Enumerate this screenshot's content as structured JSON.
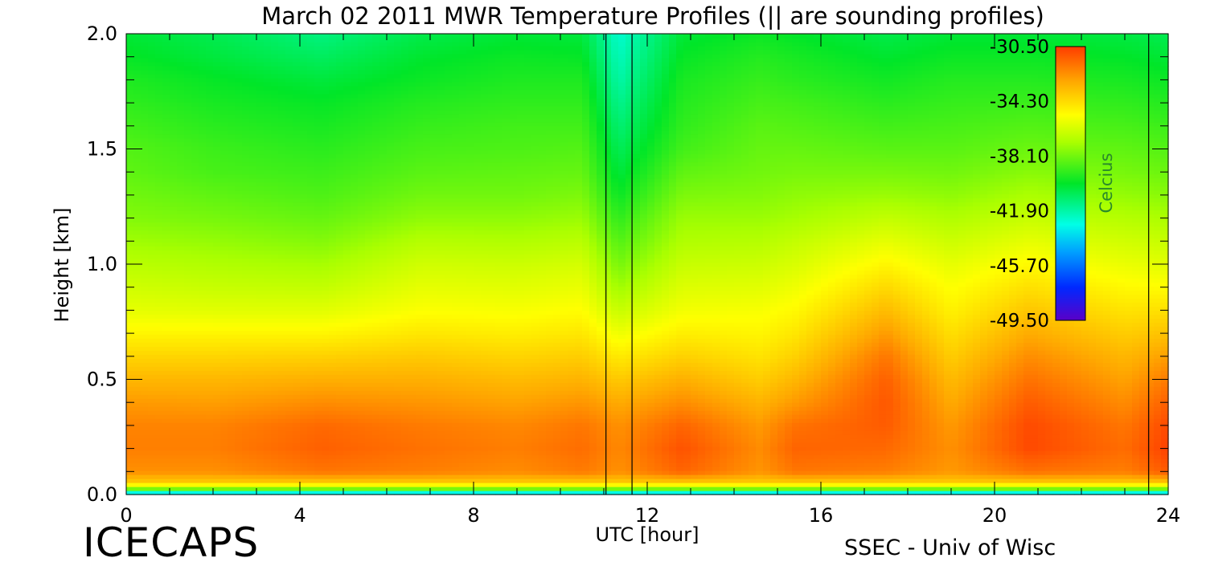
{
  "chart_data": {
    "type": "heatmap",
    "title": "March 02 2011 MWR Temperature Profiles (|| are sounding profiles)",
    "xlabel": "UTC [hour]",
    "ylabel": "Height [km]",
    "xlim": [
      0,
      24
    ],
    "ylim": [
      0,
      2.0
    ],
    "x_ticks": [
      "0",
      "4",
      "8",
      "12",
      "16",
      "20",
      "24"
    ],
    "y_ticks": [
      "0.0",
      "0.5",
      "1.0",
      "1.5",
      "2.0"
    ],
    "sounding_times_hours": [
      11.05,
      11.65,
      23.55
    ],
    "colorbar": {
      "label": "Celcius",
      "range": [
        -49.5,
        -30.5
      ],
      "ticks": [
        "-30.50",
        "-34.30",
        "-38.10",
        "-41.90",
        "-45.70",
        "-49.50"
      ]
    },
    "height_levels_km": [
      0,
      0.02,
      0.05,
      0.1,
      0.2,
      0.3,
      0.4,
      0.5,
      0.6,
      0.7,
      0.8,
      0.9,
      1.0,
      1.1,
      1.2,
      1.3,
      1.4,
      1.5,
      1.6,
      1.7,
      1.8,
      1.9,
      2.0
    ],
    "profiles": [
      {
        "t": 0.0,
        "temps": [
          -46,
          -39,
          -34,
          -32.4,
          -32.0,
          -32.1,
          -32.6,
          -33.3,
          -34.1,
          -35.0,
          -35.8,
          -36.3,
          -36.8,
          -37.3,
          -37.8,
          -38.1,
          -38.4,
          -38.6,
          -38.9,
          -39.2,
          -39.5,
          -39.9,
          -40.2
        ]
      },
      {
        "t": 2.0,
        "temps": [
          -46,
          -39,
          -34,
          -32.4,
          -32.0,
          -32.1,
          -32.7,
          -33.3,
          -34.1,
          -35.0,
          -35.9,
          -36.5,
          -37.0,
          -37.5,
          -38.0,
          -38.4,
          -38.8,
          -39.0,
          -39.3,
          -39.6,
          -39.9,
          -40.3,
          -40.6
        ]
      },
      {
        "t": 4.5,
        "temps": [
          -46,
          -39,
          -34,
          -31.8,
          -31.3,
          -31.5,
          -32.3,
          -33.1,
          -34.0,
          -35.0,
          -35.9,
          -36.6,
          -37.2,
          -37.8,
          -38.3,
          -38.7,
          -39.0,
          -39.3,
          -39.6,
          -39.9,
          -40.3,
          -40.8,
          -41.3
        ]
      },
      {
        "t": 6.8,
        "temps": [
          -46,
          -39,
          -34,
          -32.0,
          -31.7,
          -31.9,
          -32.5,
          -33.1,
          -33.8,
          -34.6,
          -35.3,
          -35.8,
          -36.3,
          -36.9,
          -37.6,
          -38.1,
          -38.5,
          -38.8,
          -39.1,
          -39.4,
          -39.8,
          -40.1,
          -40.5
        ]
      },
      {
        "t": 9.0,
        "temps": [
          -46,
          -39,
          -34,
          -32.3,
          -32.0,
          -32.2,
          -32.8,
          -33.4,
          -34.1,
          -34.8,
          -35.4,
          -35.9,
          -36.4,
          -37.0,
          -37.6,
          -38.1,
          -38.4,
          -38.7,
          -38.9,
          -39.2,
          -39.5,
          -39.8,
          -40.2
        ]
      },
      {
        "t": 10.5,
        "temps": [
          -46,
          -39,
          -34,
          -31.9,
          -31.6,
          -31.8,
          -32.5,
          -33.2,
          -33.9,
          -34.6,
          -35.2,
          -35.7,
          -36.2,
          -36.8,
          -37.4,
          -37.9,
          -38.3,
          -38.6,
          -38.9,
          -39.2,
          -39.5,
          -39.9,
          -40.3
        ]
      },
      {
        "t": 11.35,
        "temps": [
          -46,
          -39,
          -34,
          -32.4,
          -32.2,
          -32.4,
          -33.0,
          -33.8,
          -34.7,
          -35.6,
          -36.5,
          -37.3,
          -38.0,
          -38.6,
          -39.2,
          -39.8,
          -40.3,
          -40.7,
          -41.1,
          -41.5,
          -41.9,
          -42.2,
          -42.5
        ]
      },
      {
        "t": 12.8,
        "temps": [
          -46,
          -39,
          -34,
          -31.4,
          -31.0,
          -31.4,
          -32.3,
          -33.1,
          -34.0,
          -34.8,
          -35.5,
          -36.0,
          -36.5,
          -37.0,
          -37.4,
          -37.9,
          -38.4,
          -38.9,
          -39.2,
          -39.4,
          -39.6,
          -39.9,
          -40.2
        ]
      },
      {
        "t": 14.6,
        "temps": [
          -46,
          -39,
          -34,
          -32.5,
          -32.3,
          -32.6,
          -33.2,
          -33.9,
          -34.5,
          -35.0,
          -35.4,
          -35.9,
          -36.4,
          -36.9,
          -37.4,
          -37.8,
          -38.1,
          -38.3,
          -38.5,
          -38.8,
          -39.1,
          -39.4,
          -39.8
        ]
      },
      {
        "t": 15.4,
        "temps": [
          -46,
          -39,
          -34,
          -31.8,
          -31.4,
          -31.7,
          -32.6,
          -33.3,
          -34.0,
          -34.6,
          -35.1,
          -35.6,
          -36.1,
          -36.6,
          -37.2,
          -37.6,
          -38.0,
          -38.3,
          -38.6,
          -38.9,
          -39.3,
          -39.6,
          -40.0
        ]
      },
      {
        "t": 17.5,
        "temps": [
          -46,
          -39,
          -34,
          -32.0,
          -31.5,
          -31.2,
          -31.1,
          -31.3,
          -31.8,
          -32.6,
          -33.4,
          -34.2,
          -35.0,
          -35.8,
          -36.6,
          -37.4,
          -38.0,
          -38.5,
          -38.9,
          -39.3,
          -39.7,
          -40.1,
          -40.5
        ]
      },
      {
        "t": 19.0,
        "temps": [
          -46,
          -39,
          -34,
          -32.6,
          -32.4,
          -32.6,
          -33.0,
          -33.4,
          -33.9,
          -34.4,
          -34.9,
          -35.3,
          -35.8,
          -36.4,
          -37.0,
          -37.6,
          -38.1,
          -38.5,
          -38.8,
          -39.1,
          -39.4,
          -39.8,
          -40.2
        ]
      },
      {
        "t": 20.8,
        "temps": [
          -46,
          -39,
          -34,
          -31.7,
          -30.8,
          -30.8,
          -31.2,
          -31.7,
          -32.3,
          -33.0,
          -33.7,
          -34.4,
          -35.1,
          -35.8,
          -36.5,
          -37.1,
          -37.7,
          -38.2,
          -38.6,
          -39.0,
          -39.4,
          -39.8,
          -40.2
        ]
      },
      {
        "t": 23.0,
        "temps": [
          -46,
          -39,
          -34,
          -32.0,
          -31.6,
          -31.8,
          -32.3,
          -32.8,
          -33.3,
          -33.9,
          -34.5,
          -35.1,
          -35.7,
          -36.3,
          -36.9,
          -37.5,
          -38.0,
          -38.4,
          -38.8,
          -39.2,
          -39.6,
          -40.0,
          -40.4
        ]
      },
      {
        "t": 24.0,
        "temps": [
          -46,
          -39,
          -34,
          -31.2,
          -30.6,
          -30.8,
          -31.3,
          -31.9,
          -32.7,
          -33.6,
          -34.4,
          -35.2,
          -35.9,
          -36.5,
          -37.1,
          -37.7,
          -38.2,
          -38.6,
          -39.0,
          -39.4,
          -39.8,
          -40.2,
          -40.6
        ]
      }
    ]
  },
  "footer": {
    "project": "ICECAPS",
    "credit": "SSEC - Univ of Wisc"
  }
}
